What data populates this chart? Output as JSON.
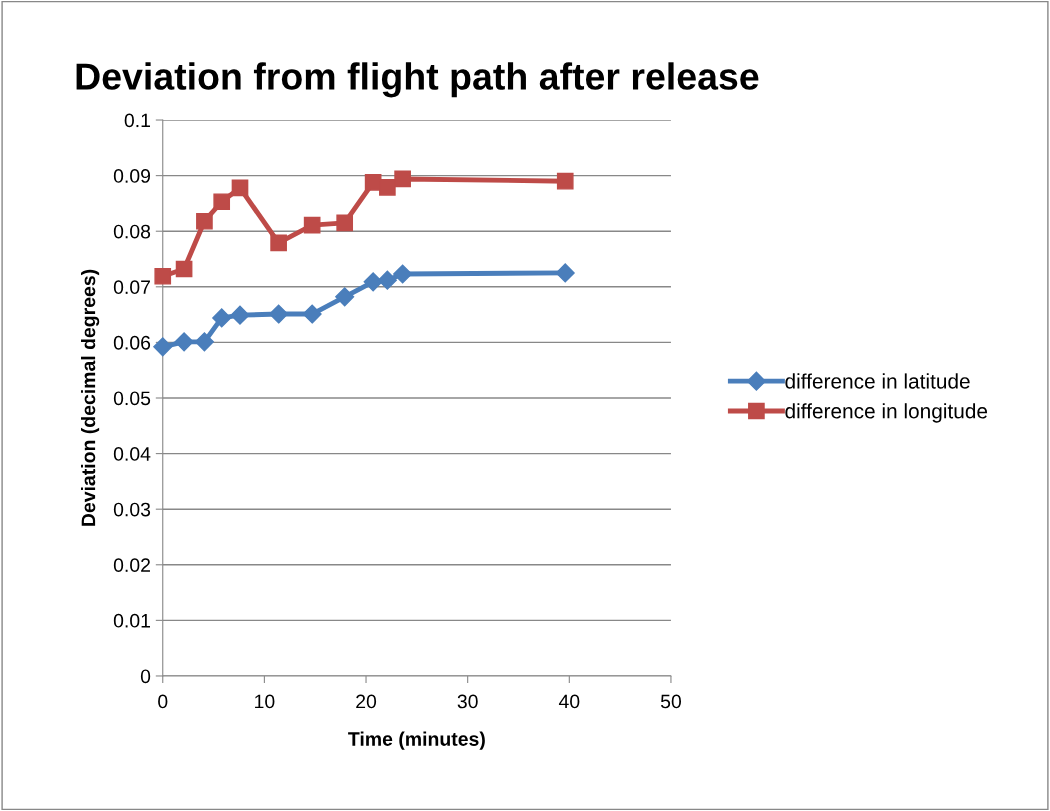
{
  "chart_data": {
    "type": "line",
    "title": "Deviation from flight path after release",
    "xlabel": "Time (minutes)",
    "ylabel": "Deviation (decimal degrees)",
    "xlim": [
      0,
      50
    ],
    "xticks": [
      0,
      10,
      20,
      30,
      40,
      50
    ],
    "ylim": [
      0,
      0.1
    ],
    "yticks": [
      0,
      0.01,
      0.02,
      0.03,
      0.04,
      0.05,
      0.06,
      0.07,
      0.08,
      0.09,
      0.1
    ],
    "grid": "y",
    "legend": "right",
    "series": [
      {
        "name": "difference in latitude",
        "color": "#4a7ebb",
        "marker": "diamond",
        "x": [
          0,
          2.1,
          4.1,
          5.8,
          7.6,
          11.4,
          14.7,
          17.9,
          20.7,
          22.1,
          23.6,
          39.6
        ],
        "values": [
          0.0592,
          0.0601,
          0.0601,
          0.0644,
          0.0649,
          0.0651,
          0.0651,
          0.0682,
          0.0709,
          0.0712,
          0.0723,
          0.0725
        ]
      },
      {
        "name": "difference in longitude",
        "color": "#be4b48",
        "marker": "square",
        "x": [
          0,
          2.1,
          4.1,
          5.8,
          7.6,
          11.4,
          14.7,
          17.9,
          20.7,
          22.1,
          23.6,
          39.6
        ],
        "values": [
          0.0719,
          0.0732,
          0.0818,
          0.0853,
          0.0878,
          0.0779,
          0.0811,
          0.0815,
          0.0888,
          0.0879,
          0.0894,
          0.089
        ]
      }
    ]
  }
}
